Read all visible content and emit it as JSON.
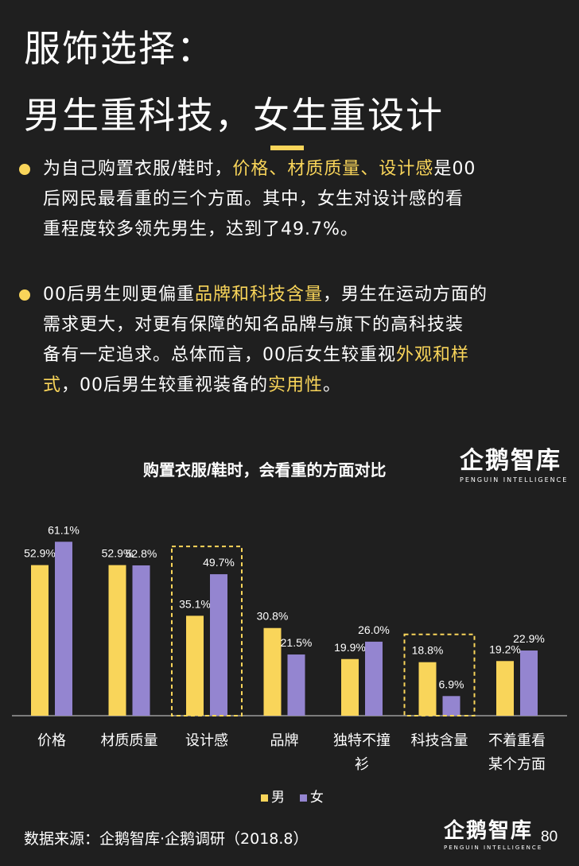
{
  "title": {
    "line1": "服饰选择：",
    "line2": "男生重科技，女生重设计"
  },
  "paragraphs": [
    {
      "lines": [
        [
          {
            "t": "为自己购置衣服/鞋时，"
          },
          {
            "t": "价格、材质质量、设计感",
            "hl": true
          },
          {
            "t": "是00"
          }
        ],
        [
          {
            "t": "后网民最看重的三个方面。其中，女生对设计感的看"
          }
        ],
        [
          {
            "t": "重程度较多领先男生，达到了49.7%。"
          }
        ]
      ]
    },
    {
      "lines": [
        [
          {
            "t": "00后男生则更偏重"
          },
          {
            "t": "品牌和科技含量",
            "hl": true
          },
          {
            "t": "，男生在运动方面的"
          }
        ],
        [
          {
            "t": "需求更大，对更有保障的知名品牌与旗下的高科技装"
          }
        ],
        [
          {
            "t": "备有一定追求。总体而言，00后女生较重视"
          },
          {
            "t": "外观和样",
            "hl": true
          }
        ],
        [
          {
            "t": "式",
            "hl": true
          },
          {
            "t": "，00后男生较重视装备的"
          },
          {
            "t": "实用性",
            "hl": true
          },
          {
            "t": "。"
          }
        ]
      ]
    }
  ],
  "logo": {
    "main": "企鹅智库",
    "sub": "PENGUIN INTELLIGENCE"
  },
  "colors": {
    "male": "#f9d55a",
    "female": "#9485d0",
    "highlight": "#f9d55a",
    "background": "#1f1f1f"
  },
  "chart_data": {
    "type": "bar",
    "title": "购置衣服/鞋时，会看重的方面对比",
    "categories": [
      "价格",
      "材质质量",
      "设计感",
      "品牌",
      "独特不撞衫",
      "科技含量",
      "不着重看某个方面"
    ],
    "category_display": [
      [
        "价格"
      ],
      [
        "材质质量"
      ],
      [
        "设计感"
      ],
      [
        "品牌"
      ],
      [
        "独特不撞",
        "衫"
      ],
      [
        "科技含量"
      ],
      [
        "不着重看",
        "某个方面"
      ]
    ],
    "series": [
      {
        "name": "男",
        "values": [
          52.9,
          52.9,
          35.1,
          30.8,
          19.9,
          18.8,
          19.2
        ],
        "labels": [
          "52.9%",
          "52.9%",
          "35.1%",
          "30.8%",
          "19.9%",
          "18.8%",
          "19.2%"
        ]
      },
      {
        "name": "女",
        "values": [
          61.1,
          52.8,
          49.7,
          21.5,
          26.0,
          6.9,
          22.9
        ],
        "labels": [
          "61.1%",
          "52.8%",
          "49.7%",
          "21.5%",
          "26.0%",
          "6.9%",
          "22.9%"
        ]
      }
    ],
    "highlighted_categories": [
      "设计感",
      "科技含量"
    ],
    "ylim": [
      0,
      65
    ],
    "legend": "bottom-center",
    "grid": false
  },
  "footer": {
    "source": "数据来源：企鹅智库·企鹅调研（2018.8）",
    "page_number": "80"
  }
}
